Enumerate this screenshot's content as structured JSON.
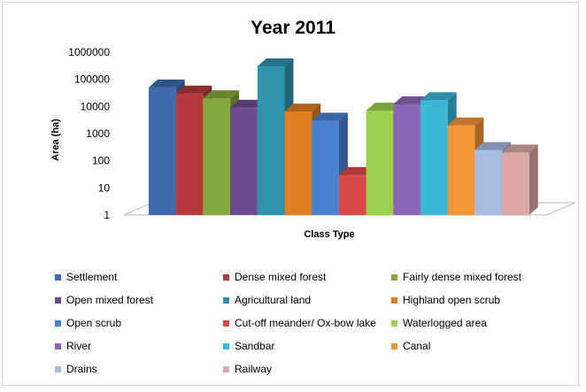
{
  "chart_data": {
    "type": "bar",
    "title": "Year 2011",
    "xlabel": "Class Type",
    "ylabel": "Area (ha)",
    "y_scale": "log",
    "ylim": [
      1,
      1000000
    ],
    "y_ticks": [
      "1",
      "10",
      "100",
      "1000",
      "10000",
      "100000",
      "1000000"
    ],
    "series": [
      {
        "name": "Settlement",
        "value": 50000,
        "color": "#3f6aad"
      },
      {
        "name": "Dense mixed forest",
        "value": 30000,
        "color": "#b33b3a"
      },
      {
        "name": "Fairly dense mixed forest",
        "value": 20000,
        "color": "#86a83f"
      },
      {
        "name": "Open mixed forest",
        "value": 9000,
        "color": "#6c4b91"
      },
      {
        "name": "Agricultural land",
        "value": 300000,
        "color": "#2f93ad"
      },
      {
        "name": "Highland open scrub",
        "value": 6500,
        "color": "#e07d25"
      },
      {
        "name": "Open scrub",
        "value": 3000,
        "color": "#4a82d2"
      },
      {
        "name": "Cut-off meander/ Ox-bow lake",
        "value": 30,
        "color": "#d94a47"
      },
      {
        "name": "Waterlogged area",
        "value": 7000,
        "color": "#9fd04d"
      },
      {
        "name": "River",
        "value": 12000,
        "color": "#8a67b6"
      },
      {
        "name": "Sandbar",
        "value": 17000,
        "color": "#3ab8d6"
      },
      {
        "name": "Canal",
        "value": 2000,
        "color": "#f6953c"
      },
      {
        "name": "Drains",
        "value": 250,
        "color": "#a8bde0"
      },
      {
        "name": "Railway",
        "value": 200,
        "color": "#dba9a8"
      }
    ],
    "legend_position": "bottom"
  }
}
